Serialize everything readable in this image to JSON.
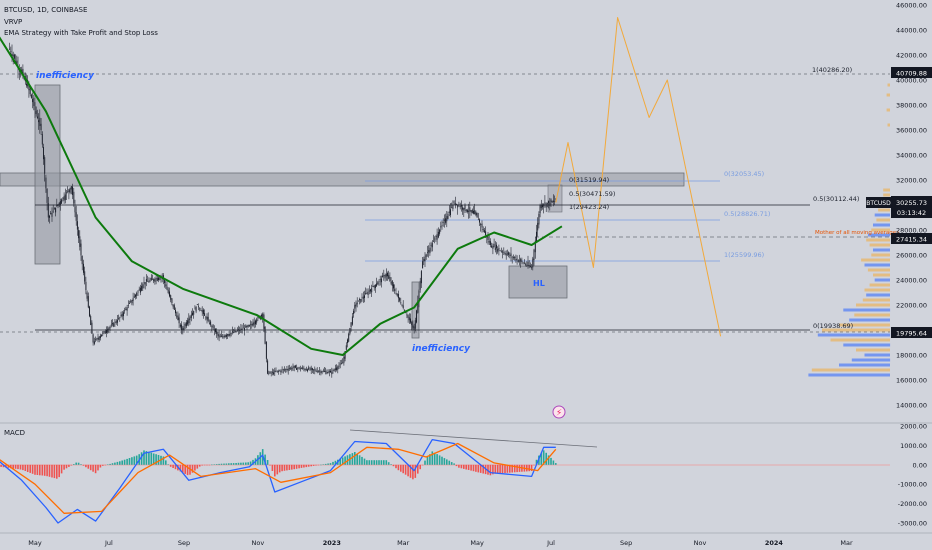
{
  "header": {
    "symbol_line": "BTCUSD, 1D, COINBASE",
    "indicator_1": "VRVP",
    "indicator_2": "EMA Strategy with Take Profit and Stop Loss"
  },
  "colors": {
    "background": "#d1d4dc",
    "candle": "#1e222d",
    "ema": "#0d7a0d",
    "projection": "#f2a93b",
    "fib": "#7a9de0",
    "macd_line": "#2962ff",
    "signal_line": "#ff6d00",
    "hist_pos": "#26a69a",
    "hist_neg": "#ef5350",
    "annotation_blue": "#2962ff",
    "annotation_orange": "#e65100",
    "price_badge": "#131722"
  },
  "annotations": {
    "inefficiency_top": "inefficiency",
    "inefficiency_bottom": "inefficiency",
    "hl": "HL",
    "mother": "Mother of all moving averages",
    "fib_high": "1(40286.20)",
    "fib_right_low": "0(19938.69)",
    "fib_right_mid": "0.5(30112.44)",
    "fib_a0": "0(31519.94)",
    "fib_a05": "0.5(30471.59)",
    "fib_a1": "1(29423.24)",
    "fib_b0": "0(32053.45)",
    "fib_b05": "0.5(28826.71)",
    "fib_b1": "1(25599.96)"
  },
  "price_badges": {
    "p40709": "40709.88",
    "symbol": "BTCUSD",
    "last": "30255.73",
    "countdown": "03:13:42",
    "p27415": "27415.34",
    "p19795": "19795.64"
  },
  "macd_label": "MACD",
  "chart_data": [
    {
      "type": "candlestick",
      "title": "BTCUSD, 1D, COINBASE",
      "x_ticks": [
        "May",
        "Jul",
        "Sep",
        "Nov",
        "2023",
        "Mar",
        "May",
        "Jul",
        "Sep",
        "Nov",
        "2024",
        "Mar"
      ],
      "y_ticks": [
        "46000.00",
        "44000.00",
        "42000.00",
        "40000.00",
        "38000.00",
        "36000.00",
        "34000.00",
        "32000.00",
        "30000.00",
        "28000.00",
        "26000.00",
        "24000.00",
        "22000.00",
        "20000.00",
        "18000.00",
        "16000.00",
        "14000.00"
      ],
      "ylim": [
        13000,
        46500
      ],
      "series": [
        {
          "name": "BTCUSD",
          "points": [
            [
              "Apr 10 2022",
              42500
            ],
            [
              "Apr 25 2022",
              39500
            ],
            [
              "May 6 2022",
              36000
            ],
            [
              "May 12 2022",
              29000
            ],
            [
              "May 31 2022",
              31500
            ],
            [
              "Jun 13 2022",
              22500
            ],
            [
              "Jun 18 2022",
              19000
            ],
            [
              "Jul 10 2022",
              21000
            ],
            [
              "Jul 30 2022",
              23800
            ],
            [
              "Aug 14 2022",
              24300
            ],
            [
              "Aug 30 2022",
              20000
            ],
            [
              "Sep 12 2022",
              22000
            ],
            [
              "Sep 30 2022",
              19400
            ],
            [
              "Oct 25 2022",
              20300
            ],
            [
              "Nov 5 2022",
              21300
            ],
            [
              "Nov 9 2022",
              16500
            ],
            [
              "Nov 30 2022",
              17000
            ],
            [
              "Dec 31 2022",
              16600
            ],
            [
              "Jan 10 2023",
              17400
            ],
            [
              "Jan 20 2023",
              22000
            ],
            [
              "Feb 15 2023",
              24500
            ],
            [
              "Mar 10 2023",
              20000
            ],
            [
              "Mar 17 2023",
              25500
            ],
            [
              "Apr 12 2023",
              30200
            ],
            [
              "Apr 30 2023",
              29200
            ],
            [
              "May 12 2023",
              26800
            ],
            [
              "Jun 15 2023",
              25000
            ],
            [
              "Jun 22 2023",
              30000
            ],
            [
              "Jul 5 2023",
              30300
            ]
          ]
        },
        {
          "name": "EMA",
          "points": [
            [
              "Apr 1 2022",
              43500
            ],
            [
              "May 10 2022",
              37500
            ],
            [
              "Jun 20 2022",
              29000
            ],
            [
              "Jul 20 2022",
              25500
            ],
            [
              "Aug 31 2022",
              23300
            ],
            [
              "Oct 31 2022",
              21200
            ],
            [
              "Dec 15 2022",
              18500
            ],
            [
              "Jan 10 2023",
              18000
            ],
            [
              "Feb 10 2023",
              20500
            ],
            [
              "Mar 10 2023",
              21800
            ],
            [
              "Apr 15 2023",
              26500
            ],
            [
              "May 15 2023",
              27800
            ],
            [
              "Jun 15 2023",
              26800
            ],
            [
              "Jul 10 2023",
              28300
            ]
          ]
        },
        {
          "name": "Projection",
          "points": [
            [
              "Jul 5 2023",
              30200
            ],
            [
              "Jul 15 2023",
              35000
            ],
            [
              "Aug 5 2023",
              25000
            ],
            [
              "Aug 25 2023",
              45000
            ],
            [
              "Sep 20 2023",
              37000
            ],
            [
              "Oct 5 2023",
              40000
            ],
            [
              "Nov 18 2023",
              19500
            ]
          ]
        }
      ]
    },
    {
      "type": "macd",
      "title": "MACD",
      "y_ticks": [
        "2000.00",
        "1000.00",
        "0.00",
        "-1000.00",
        "-2000.00",
        "-3000.00"
      ],
      "ylim": [
        -3600,
        2300
      ],
      "series": [
        {
          "name": "MACD",
          "points": [
            [
              "Apr 1 2022",
              200
            ],
            [
              "Apr 20 2022",
              -800
            ],
            [
              "May 10 2022",
              -2200
            ],
            [
              "May 20 2022",
              -3000
            ],
            [
              "Jun 5 2022",
              -2300
            ],
            [
              "Jun 20 2022",
              -2900
            ],
            [
              "Jul 10 2022",
              -1200
            ],
            [
              "Jul 30 2022",
              600
            ],
            [
              "Aug 15 2022",
              800
            ],
            [
              "Sep 5 2022",
              -800
            ],
            [
              "Oct 1 2022",
              -400
            ],
            [
              "Oct 25 2022",
              -100
            ],
            [
              "Nov 5 2022",
              500
            ],
            [
              "Nov 15 2022",
              -1400
            ],
            [
              "Dec 10 2022",
              -800
            ],
            [
              "Dec 31 2022",
              -300
            ],
            [
              "Jan 20 2023",
              1200
            ],
            [
              "Feb 15 2023",
              1100
            ],
            [
              "Mar 10 2023",
              -300
            ],
            [
              "Mar 25 2023",
              1300
            ],
            [
              "Apr 12 2023",
              1100
            ],
            [
              "May 12 2023",
              -400
            ],
            [
              "Jun 15 2023",
              -600
            ],
            [
              "Jun 25 2023",
              900
            ],
            [
              "Jul 5 2023",
              900
            ]
          ]
        },
        {
          "name": "Signal",
          "points": [
            [
              "Apr 1 2022",
              300
            ],
            [
              "May 1 2022",
              -1000
            ],
            [
              "May 25 2022",
              -2500
            ],
            [
              "Jun 25 2022",
              -2400
            ],
            [
              "Jul 25 2022",
              -400
            ],
            [
              "Aug 20 2022",
              500
            ],
            [
              "Sep 15 2022",
              -600
            ],
            [
              "Oct 30 2022",
              -200
            ],
            [
              "Nov 20 2022",
              -900
            ],
            [
              "Dec 31 2022",
              -400
            ],
            [
              "Jan 30 2023",
              900
            ],
            [
              "Feb 25 2023",
              800
            ],
            [
              "Mar 20 2023",
              400
            ],
            [
              "Apr 15 2023",
              1100
            ],
            [
              "May 15 2023",
              100
            ],
            [
              "Jun 20 2023",
              -300
            ],
            [
              "Jul 5 2023",
              800
            ]
          ]
        }
      ]
    }
  ]
}
